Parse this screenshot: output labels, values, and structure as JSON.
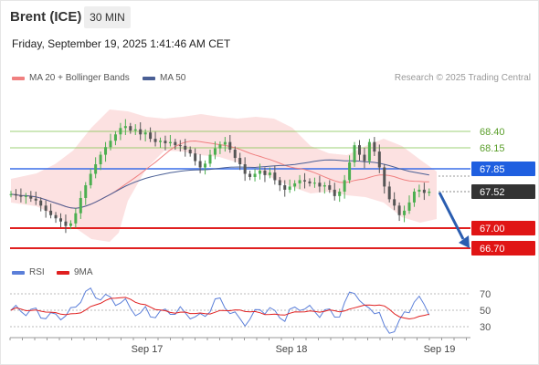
{
  "header": {
    "instrument": "Brent (ICE)",
    "timeframe": "30 MIN",
    "datetime": "Friday, September 19, 2025 1:41:46 AM CET"
  },
  "legend": {
    "items": [
      {
        "label": "MA 20 + Bollinger Bands",
        "color": "#f08080"
      },
      {
        "label": "MA 50",
        "color": "#4a5f95"
      }
    ],
    "copyright": "Research © 2025 Trading Central"
  },
  "indicator_legend": {
    "items": [
      {
        "label": "RSI",
        "color": "#5b7fd9"
      },
      {
        "label": "9MA",
        "color": "#e02020"
      }
    ]
  },
  "chart_data": {
    "type": "candlestick",
    "price_levels": [
      {
        "value": "68.40",
        "kind": "resistance",
        "color": "#7cc24a"
      },
      {
        "value": "68.15",
        "kind": "resistance",
        "color": "#7cc24a"
      },
      {
        "value": "67.85",
        "kind": "pivot",
        "color": "#3a6ee8"
      },
      {
        "value": "67.52",
        "kind": "last-price",
        "color": "#333333"
      },
      {
        "value": "67.00",
        "kind": "support",
        "color": "#e02020"
      },
      {
        "value": "66.70",
        "kind": "support",
        "color": "#e02020"
      }
    ],
    "rsi_ticks": [
      "70",
      "50",
      "30"
    ],
    "x_ticks": [
      "Sep 17",
      "Sep 18",
      "Sep 19"
    ],
    "forecast_direction": "down"
  }
}
